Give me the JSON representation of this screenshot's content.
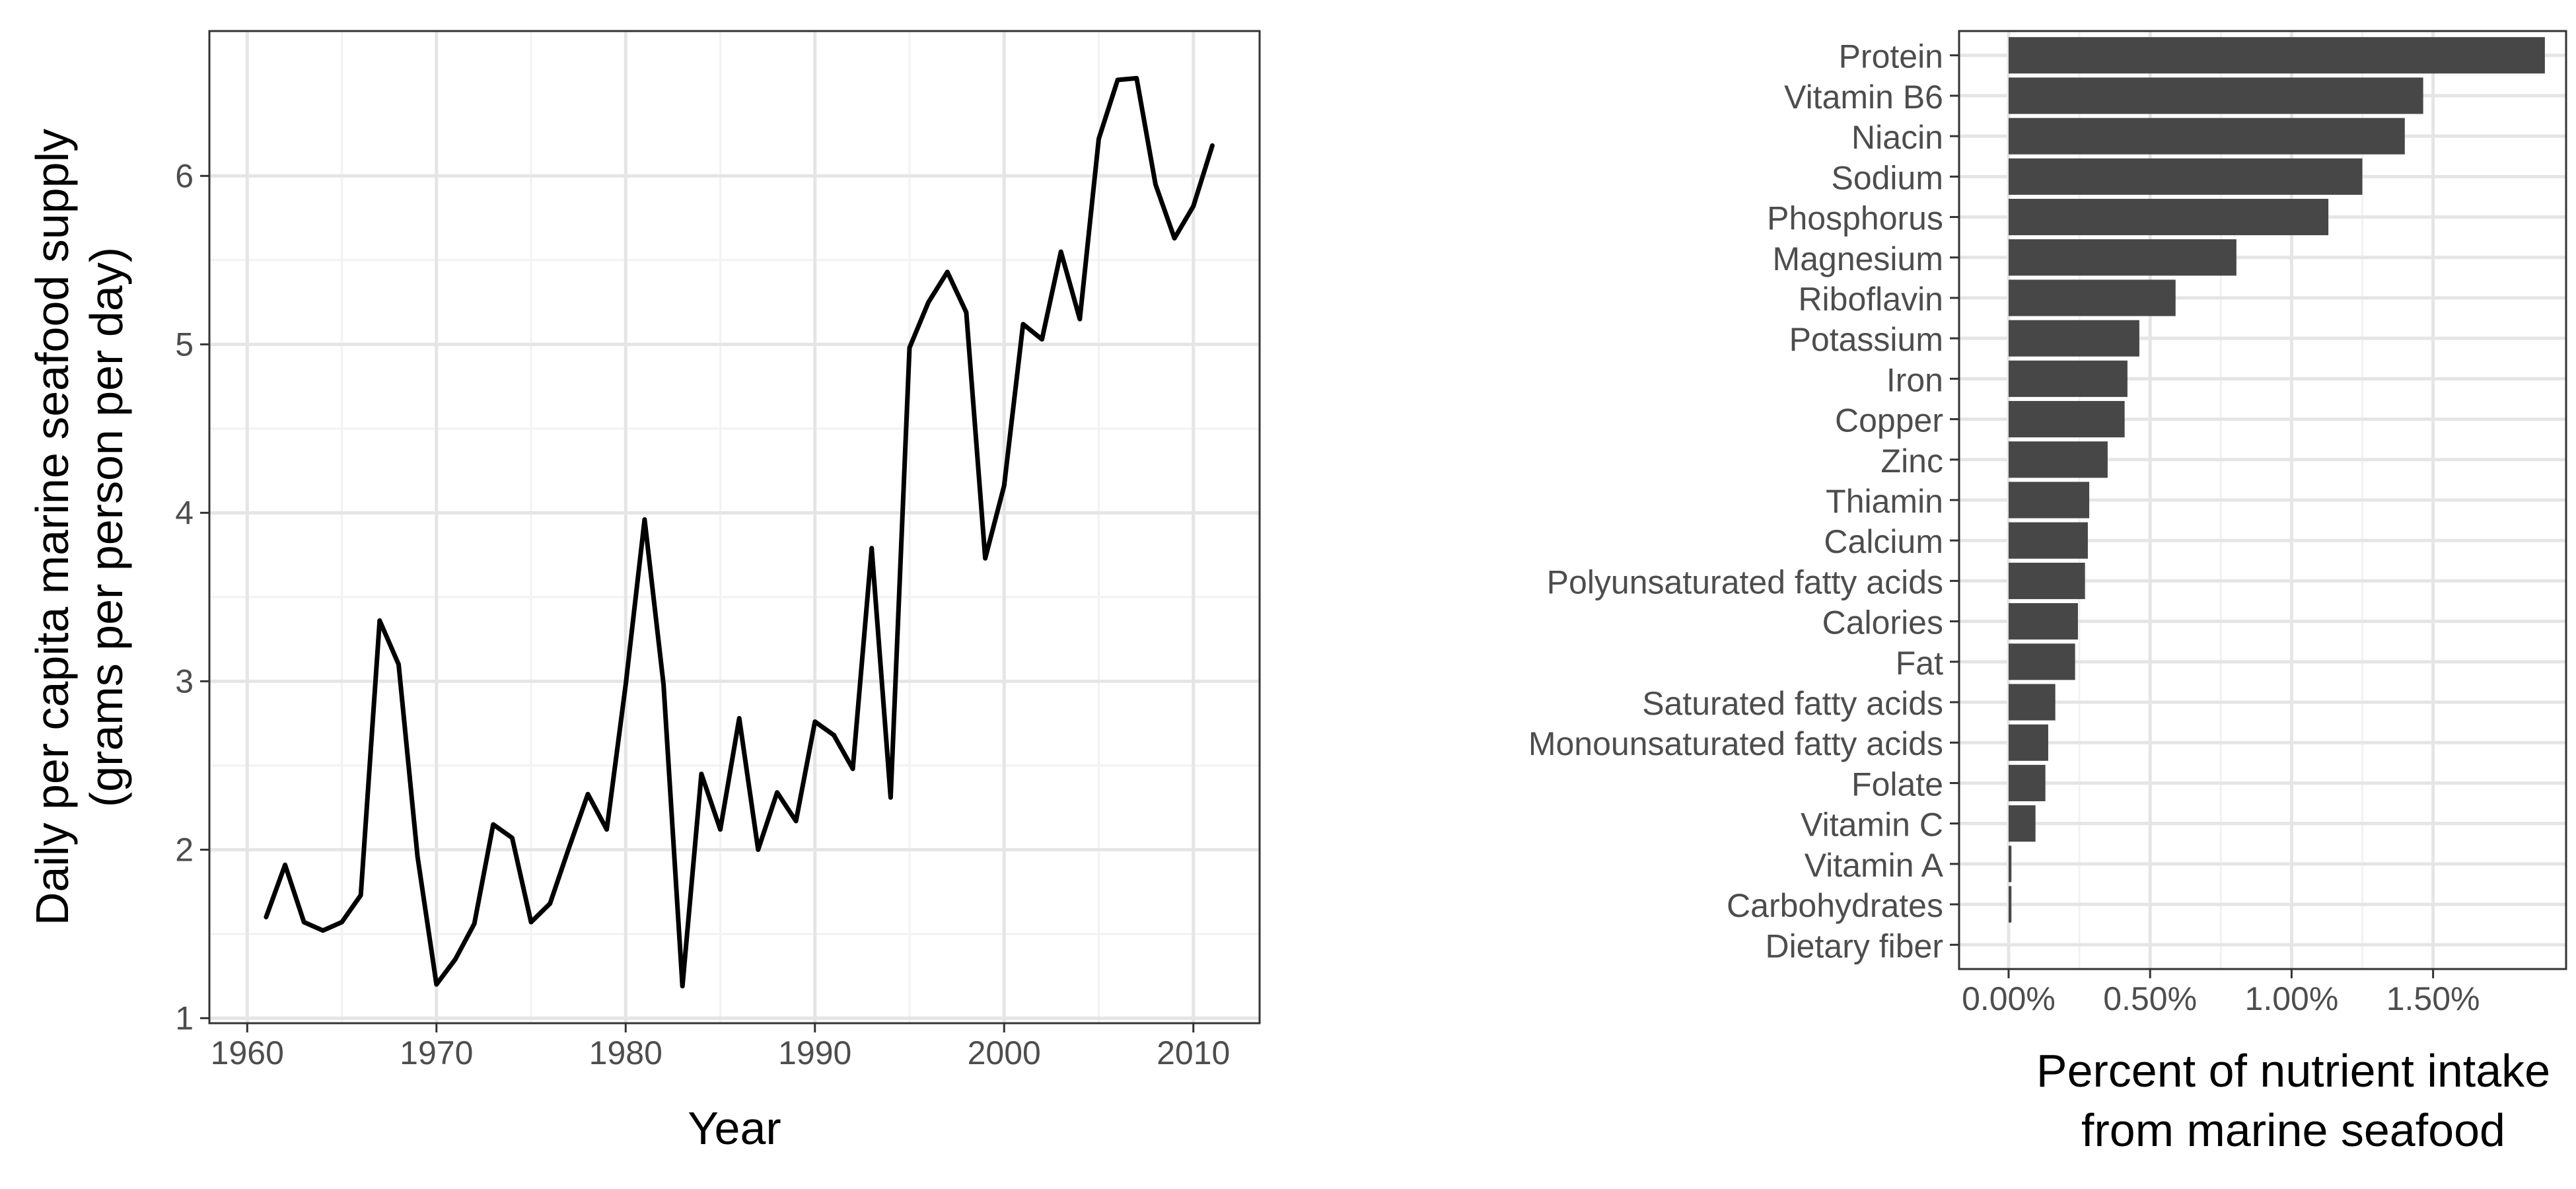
{
  "chart_data": [
    {
      "type": "line",
      "xlabel": "Year",
      "ylabel": [
        "Daily per capita marine seafood supply",
        "(grams per person per day)"
      ],
      "xlim": [
        1958,
        2013.5
      ],
      "ylim": [
        0.97,
        6.86
      ],
      "x_ticks": [
        1960,
        1970,
        1980,
        1990,
        2000,
        2010
      ],
      "x_tick_labels": [
        "1960",
        "1970",
        "1980",
        "1990",
        "2000",
        "2010"
      ],
      "y_ticks": [
        1,
        2,
        3,
        4,
        5,
        6
      ],
      "y_tick_labels": [
        "1",
        "2",
        "3",
        "4",
        "5",
        "6"
      ],
      "grid": true,
      "series": [
        {
          "color": "#000000",
          "x": [
            1961,
            1962,
            1963,
            1964,
            1965,
            1966,
            1967,
            1968,
            1969,
            1970,
            1971,
            1972,
            1973,
            1974,
            1975,
            1976,
            1977,
            1978,
            1979,
            1980,
            1981,
            1982,
            1983,
            1984,
            1985,
            1986,
            1987,
            1988,
            1989,
            1990,
            1991,
            1992,
            1993,
            1994,
            1995,
            1996,
            1997,
            1998,
            1999,
            2000,
            2001,
            2002,
            2003,
            2004,
            2005,
            2006,
            2007,
            2008,
            2009,
            2010,
            2011
          ],
          "y": [
            1.6,
            1.91,
            1.57,
            1.52,
            1.57,
            1.73,
            3.36,
            3.1,
            1.96,
            1.2,
            1.35,
            1.56,
            2.15,
            2.07,
            1.57,
            1.68,
            2.01,
            2.33,
            2.12,
            2.98,
            3.96,
            2.98,
            1.19,
            2.45,
            2.12,
            2.78,
            2.0,
            2.34,
            2.17,
            2.76,
            2.68,
            2.48,
            3.79,
            2.31,
            4.98,
            5.25,
            5.43,
            5.19,
            3.73,
            4.16,
            5.12,
            5.03,
            5.55,
            5.15,
            6.22,
            6.57,
            6.58,
            5.95,
            5.63,
            5.82,
            6.18
          ]
        }
      ]
    },
    {
      "type": "bar",
      "orientation": "horizontal",
      "xlabel": [
        "Percent of nutrient intake",
        "from marine seafood"
      ],
      "xlim": [
        -0.00175,
        0.0197
      ],
      "x_ticks": [
        0,
        0.005,
        0.01,
        0.015
      ],
      "x_tick_labels": [
        "0.00%",
        "0.50%",
        "1.00%",
        "1.50%"
      ],
      "bar_color": "#474747",
      "grid": true,
      "categories": [
        "Protein",
        "Vitamin B6",
        "Niacin",
        "Sodium",
        "Phosphorus",
        "Magnesium",
        "Riboflavin",
        "Potassium",
        "Iron",
        "Copper",
        "Zinc",
        "Thiamin",
        "Calcium",
        "Polyunsaturated fatty acids",
        "Calories",
        "Fat",
        "Saturated fatty acids",
        "Monounsaturated fatty acids",
        "Folate",
        "Vitamin C",
        "Vitamin A",
        "Carbohydrates",
        "Dietary fiber"
      ],
      "values": [
        0.01895,
        0.01465,
        0.014,
        0.0125,
        0.0113,
        0.00805,
        0.0059,
        0.00462,
        0.0042,
        0.0041,
        0.0035,
        0.00285,
        0.0028,
        0.0027,
        0.00245,
        0.00235,
        0.00165,
        0.0014,
        0.0013,
        0.00095,
        0.0001,
        0.0001,
        0.0
      ]
    }
  ]
}
